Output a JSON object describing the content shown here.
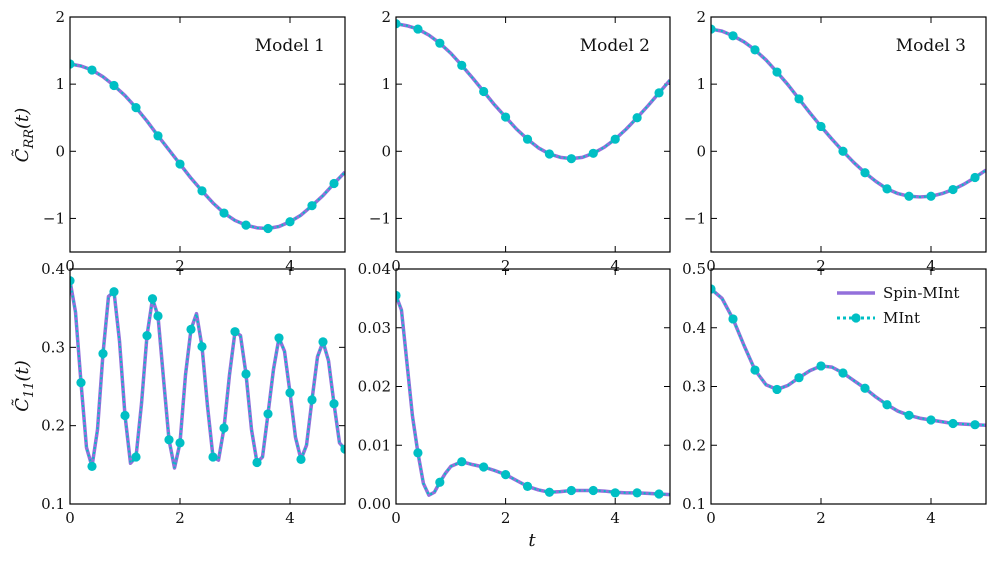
{
  "colors": {
    "spin": "#9370DB",
    "mint": "#00BFC4",
    "axes": "#000000"
  },
  "figure": {
    "xlabel": "t",
    "row_ylabels": [
      "C̃RR(t)",
      "C̃11(t)"
    ],
    "legend": {
      "placement": "upper-right of bottom-right panel",
      "entries": [
        "Spin-MInt",
        "MInt"
      ]
    }
  },
  "chart_data": [
    {
      "type": "line",
      "title": "Model 1",
      "xlim": [
        0,
        5
      ],
      "ylim": [
        -1.5,
        2
      ],
      "xticks": [
        "0",
        "2",
        "4"
      ],
      "yticks": [
        "−1",
        "0",
        "1",
        "2"
      ],
      "x_series": [
        0,
        0.2,
        0.4,
        0.6,
        0.8,
        1.0,
        1.2,
        1.4,
        1.6,
        1.8,
        2.0,
        2.2,
        2.4,
        2.6,
        2.8,
        3.0,
        3.2,
        3.4,
        3.6,
        3.8,
        4.0,
        4.2,
        4.4,
        4.6,
        4.8,
        5.0
      ],
      "series": [
        {
          "name": "Spin-MInt",
          "values": [
            1.3,
            1.27,
            1.21,
            1.11,
            0.98,
            0.83,
            0.65,
            0.45,
            0.23,
            0.02,
            -0.19,
            -0.4,
            -0.59,
            -0.77,
            -0.92,
            -1.03,
            -1.1,
            -1.14,
            -1.15,
            -1.12,
            -1.05,
            -0.95,
            -0.81,
            -0.66,
            -0.48,
            -0.31
          ]
        },
        {
          "name": "MInt",
          "x": [
            0,
            0.4,
            0.8,
            1.2,
            1.6,
            2.0,
            2.4,
            2.8,
            3.2,
            3.6,
            4.0,
            4.4,
            4.8
          ],
          "values": [
            1.3,
            1.21,
            0.98,
            0.65,
            0.23,
            -0.19,
            -0.59,
            -0.92,
            -1.1,
            -1.15,
            -1.05,
            -0.81,
            -0.48
          ]
        }
      ]
    },
    {
      "type": "line",
      "title": "Model 2",
      "xlim": [
        0,
        5
      ],
      "ylim": [
        -1.5,
        2
      ],
      "xticks": [
        "0",
        "2",
        "4"
      ],
      "yticks": [
        "−1",
        "0",
        "1",
        "2"
      ],
      "x_series": [
        0,
        0.2,
        0.4,
        0.6,
        0.8,
        1.0,
        1.2,
        1.4,
        1.6,
        1.8,
        2.0,
        2.2,
        2.4,
        2.6,
        2.8,
        3.0,
        3.2,
        3.4,
        3.6,
        3.8,
        4.0,
        4.2,
        4.4,
        4.6,
        4.8,
        5.0
      ],
      "series": [
        {
          "name": "Spin-MInt",
          "values": [
            1.9,
            1.87,
            1.82,
            1.73,
            1.61,
            1.46,
            1.28,
            1.09,
            0.89,
            0.69,
            0.51,
            0.33,
            0.18,
            0.05,
            -0.04,
            -0.09,
            -0.11,
            -0.09,
            -0.03,
            0.06,
            0.18,
            0.33,
            0.5,
            0.68,
            0.87,
            1.06
          ]
        },
        {
          "name": "MInt",
          "x": [
            0,
            0.4,
            0.8,
            1.2,
            1.6,
            2.0,
            2.4,
            2.8,
            3.2,
            3.6,
            4.0,
            4.4,
            4.8
          ],
          "values": [
            1.9,
            1.82,
            1.61,
            1.28,
            0.89,
            0.51,
            0.18,
            -0.04,
            -0.11,
            -0.03,
            0.18,
            0.5,
            0.87
          ]
        }
      ]
    },
    {
      "type": "line",
      "title": "Model 3",
      "xlim": [
        0,
        5
      ],
      "ylim": [
        -1.5,
        2
      ],
      "xticks": [
        "0",
        "2",
        "4"
      ],
      "yticks": [
        "−1",
        "0",
        "1",
        "2"
      ],
      "x_series": [
        0,
        0.2,
        0.4,
        0.6,
        0.8,
        1.0,
        1.2,
        1.4,
        1.6,
        1.8,
        2.0,
        2.2,
        2.4,
        2.6,
        2.8,
        3.0,
        3.2,
        3.4,
        3.6,
        3.8,
        4.0,
        4.2,
        4.4,
        4.6,
        4.8,
        5.0
      ],
      "series": [
        {
          "name": "Spin-MInt",
          "values": [
            1.82,
            1.79,
            1.72,
            1.63,
            1.51,
            1.36,
            1.18,
            0.99,
            0.78,
            0.57,
            0.37,
            0.18,
            0.0,
            -0.17,
            -0.32,
            -0.45,
            -0.56,
            -0.63,
            -0.67,
            -0.68,
            -0.67,
            -0.63,
            -0.57,
            -0.49,
            -0.39,
            -0.28
          ]
        },
        {
          "name": "MInt",
          "x": [
            0,
            0.4,
            0.8,
            1.2,
            1.6,
            2.0,
            2.4,
            2.8,
            3.2,
            3.6,
            4.0,
            4.4,
            4.8
          ],
          "values": [
            1.82,
            1.72,
            1.51,
            1.18,
            0.78,
            0.37,
            0.0,
            -0.32,
            -0.56,
            -0.67,
            -0.67,
            -0.57,
            -0.39
          ]
        }
      ]
    },
    {
      "type": "line",
      "title": "",
      "xlim": [
        0,
        5
      ],
      "ylim": [
        0.1,
        0.4
      ],
      "xticks": [
        "0",
        "2",
        "4"
      ],
      "yticks": [
        "0.1",
        "0.2",
        "0.3",
        "0.4"
      ],
      "x_series": [
        0,
        0.1,
        0.2,
        0.3,
        0.4,
        0.5,
        0.6,
        0.7,
        0.8,
        0.9,
        1.0,
        1.1,
        1.2,
        1.3,
        1.4,
        1.5,
        1.6,
        1.7,
        1.8,
        1.9,
        2.0,
        2.1,
        2.2,
        2.3,
        2.4,
        2.5,
        2.6,
        2.7,
        2.8,
        2.9,
        3.0,
        3.1,
        3.2,
        3.3,
        3.4,
        3.5,
        3.6,
        3.7,
        3.8,
        3.9,
        4.0,
        4.1,
        4.2,
        4.3,
        4.4,
        4.5,
        4.6,
        4.7,
        4.8,
        4.9,
        5.0
      ],
      "series": [
        {
          "name": "Spin-MInt",
          "values": [
            0.385,
            0.345,
            0.255,
            0.172,
            0.148,
            0.195,
            0.292,
            0.365,
            0.371,
            0.308,
            0.213,
            0.152,
            0.16,
            0.228,
            0.315,
            0.362,
            0.34,
            0.26,
            0.182,
            0.146,
            0.178,
            0.265,
            0.323,
            0.343,
            0.301,
            0.225,
            0.16,
            0.156,
            0.197,
            0.265,
            0.32,
            0.315,
            0.266,
            0.195,
            0.153,
            0.16,
            0.215,
            0.272,
            0.312,
            0.295,
            0.242,
            0.185,
            0.157,
            0.175,
            0.233,
            0.288,
            0.307,
            0.283,
            0.228,
            0.178,
            0.17
          ]
        },
        {
          "name": "MInt",
          "x": [
            0,
            0.2,
            0.4,
            0.6,
            0.8,
            1.0,
            1.2,
            1.4,
            1.5,
            1.6,
            1.8,
            2.0,
            2.2,
            2.4,
            2.6,
            2.8,
            3.0,
            3.2,
            3.4,
            3.6,
            3.8,
            4.0,
            4.2,
            4.4,
            4.6,
            4.8,
            5.0
          ],
          "values": [
            0.385,
            0.255,
            0.148,
            0.292,
            0.371,
            0.213,
            0.16,
            0.315,
            0.362,
            0.34,
            0.182,
            0.178,
            0.323,
            0.301,
            0.16,
            0.197,
            0.32,
            0.266,
            0.153,
            0.215,
            0.312,
            0.242,
            0.157,
            0.233,
            0.307,
            0.228,
            0.17
          ]
        }
      ]
    },
    {
      "type": "line",
      "title": "",
      "xlim": [
        0,
        5
      ],
      "ylim": [
        0.0,
        0.04
      ],
      "xticks": [
        "0",
        "2",
        "4"
      ],
      "yticks": [
        "0.00",
        "0.01",
        "0.02",
        "0.03",
        "0.04"
      ],
      "x_series": [
        0,
        0.1,
        0.2,
        0.3,
        0.4,
        0.5,
        0.6,
        0.7,
        0.8,
        0.9,
        1.0,
        1.2,
        1.4,
        1.6,
        1.8,
        2.0,
        2.2,
        2.4,
        2.6,
        2.8,
        3.0,
        3.2,
        3.4,
        3.6,
        3.8,
        4.0,
        4.2,
        4.4,
        4.6,
        4.8,
        5.0
      ],
      "series": [
        {
          "name": "Spin-MInt",
          "values": [
            0.0355,
            0.033,
            0.024,
            0.015,
            0.0087,
            0.0035,
            0.0015,
            0.002,
            0.0037,
            0.0052,
            0.0064,
            0.0072,
            0.0067,
            0.0063,
            0.0057,
            0.005,
            0.004,
            0.003,
            0.0024,
            0.002,
            0.0021,
            0.0023,
            0.0023,
            0.0023,
            0.0022,
            0.002,
            0.0019,
            0.0019,
            0.0018,
            0.0017,
            0.0016
          ]
        },
        {
          "name": "MInt",
          "x": [
            0,
            0.4,
            0.8,
            1.2,
            1.6,
            2.0,
            2.4,
            2.8,
            3.2,
            3.6,
            4.0,
            4.4,
            4.8
          ],
          "values": [
            0.0355,
            0.0087,
            0.0037,
            0.0072,
            0.0063,
            0.005,
            0.003,
            0.002,
            0.0023,
            0.0023,
            0.0019,
            0.0019,
            0.0017
          ]
        }
      ]
    },
    {
      "type": "line",
      "title": "",
      "xlim": [
        0,
        5
      ],
      "ylim": [
        0.1,
        0.5
      ],
      "xticks": [
        "0",
        "2",
        "4"
      ],
      "yticks": [
        "0.1",
        "0.2",
        "0.3",
        "0.4",
        "0.5"
      ],
      "legend": "top-right",
      "x_series": [
        0,
        0.2,
        0.4,
        0.6,
        0.8,
        1.0,
        1.2,
        1.4,
        1.6,
        1.8,
        2.0,
        2.2,
        2.4,
        2.6,
        2.8,
        3.0,
        3.2,
        3.4,
        3.6,
        3.8,
        4.0,
        4.2,
        4.4,
        4.6,
        4.8,
        5.0
      ],
      "series": [
        {
          "name": "Spin-MInt",
          "values": [
            0.466,
            0.45,
            0.415,
            0.37,
            0.328,
            0.303,
            0.295,
            0.302,
            0.315,
            0.327,
            0.335,
            0.333,
            0.323,
            0.31,
            0.297,
            0.282,
            0.269,
            0.258,
            0.251,
            0.246,
            0.243,
            0.24,
            0.237,
            0.236,
            0.235,
            0.234
          ]
        },
        {
          "name": "MInt",
          "x": [
            0,
            0.4,
            0.8,
            1.2,
            1.6,
            2.0,
            2.4,
            2.8,
            3.2,
            3.6,
            4.0,
            4.4,
            4.8
          ],
          "values": [
            0.466,
            0.415,
            0.328,
            0.295,
            0.315,
            0.335,
            0.323,
            0.297,
            0.269,
            0.251,
            0.243,
            0.237,
            0.235
          ]
        }
      ]
    }
  ]
}
